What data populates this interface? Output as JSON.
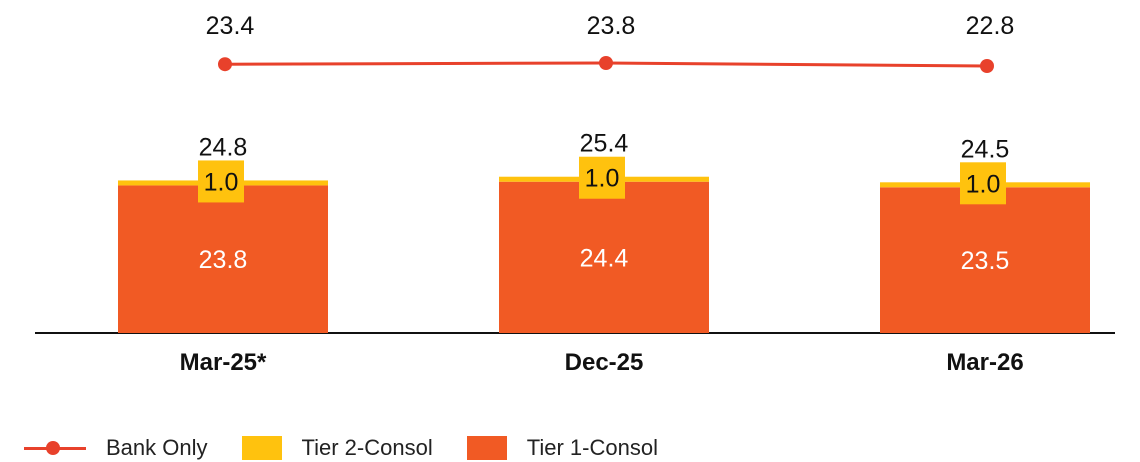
{
  "chart_data": {
    "type": "bar",
    "stacked": true,
    "categories": [
      "Mar-25*",
      "Dec-25",
      "Mar-26"
    ],
    "series": [
      {
        "name": "Tier 1-Consol",
        "kind": "bar",
        "color": "#F15A24",
        "values": [
          23.8,
          24.4,
          23.5
        ]
      },
      {
        "name": "Tier 2-Consol",
        "kind": "bar",
        "color": "#FFC20E",
        "values": [
          1.0,
          1.0,
          1.0
        ]
      },
      {
        "name": "Bank Only",
        "kind": "line",
        "color": "#E8412B",
        "values": [
          23.4,
          23.8,
          22.8
        ]
      }
    ],
    "totals": [
      24.8,
      25.4,
      24.5
    ],
    "labels": {
      "tier1": [
        "23.8",
        "24.4",
        "23.5"
      ],
      "tier2": [
        "1.0",
        "1.0",
        "1.0"
      ],
      "totals": [
        "24.8",
        "25.4",
        "24.5"
      ],
      "bank_only": [
        "23.4",
        "23.8",
        "22.8"
      ]
    },
    "legend": [
      "Bank Only",
      "Tier 2-Consol",
      "Tier 1-Consol"
    ],
    "legend_position": "bottom-left",
    "grid": false
  }
}
